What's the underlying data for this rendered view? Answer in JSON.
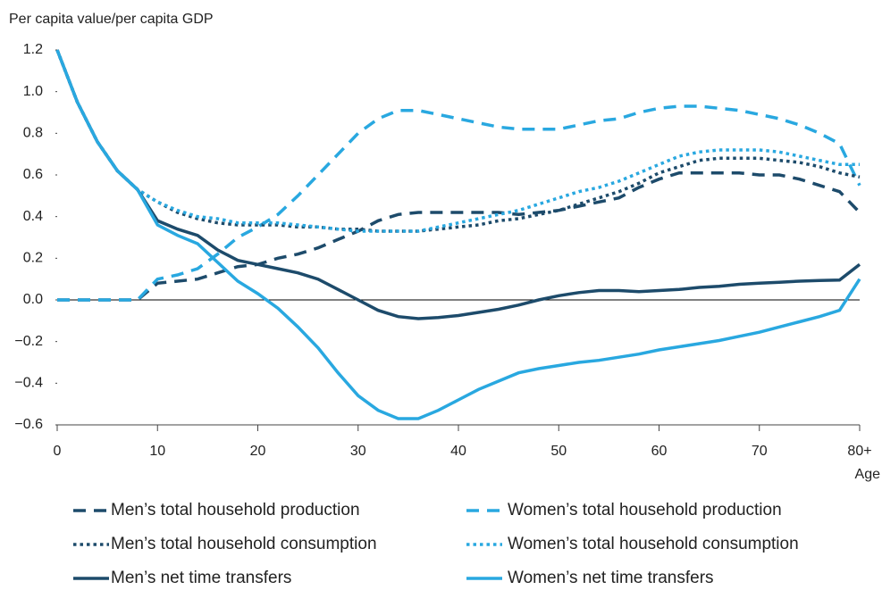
{
  "chart_data": {
    "type": "line",
    "y_label": "Per capita value/per capita GDP",
    "x_label": "Age",
    "x": [
      0,
      2,
      4,
      6,
      8,
      10,
      12,
      14,
      16,
      18,
      20,
      22,
      24,
      26,
      28,
      30,
      32,
      34,
      36,
      38,
      40,
      42,
      44,
      46,
      48,
      50,
      52,
      54,
      56,
      58,
      60,
      62,
      64,
      66,
      68,
      70,
      72,
      74,
      76,
      78,
      80
    ],
    "series": [
      {
        "name": "Men’s total household production",
        "color": "#1d4b6b",
        "dash": "dashed",
        "values": [
          0,
          0,
          0,
          0,
          0,
          0.08,
          0.09,
          0.1,
          0.13,
          0.16,
          0.17,
          0.2,
          0.22,
          0.25,
          0.29,
          0.33,
          0.38,
          0.41,
          0.42,
          0.42,
          0.42,
          0.42,
          0.42,
          0.41,
          0.42,
          0.43,
          0.45,
          0.47,
          0.49,
          0.54,
          0.58,
          0.61,
          0.61,
          0.61,
          0.61,
          0.6,
          0.6,
          0.58,
          0.55,
          0.52,
          0.42
        ]
      },
      {
        "name": "Women’s total household production",
        "color": "#29a8e0",
        "dash": "dashed",
        "values": [
          0,
          0,
          0,
          0,
          0,
          0.1,
          0.12,
          0.15,
          0.22,
          0.3,
          0.35,
          0.41,
          0.5,
          0.6,
          0.7,
          0.8,
          0.87,
          0.91,
          0.91,
          0.89,
          0.87,
          0.85,
          0.83,
          0.82,
          0.82,
          0.82,
          0.84,
          0.86,
          0.87,
          0.9,
          0.92,
          0.93,
          0.93,
          0.92,
          0.91,
          0.89,
          0.87,
          0.84,
          0.8,
          0.75,
          0.55
        ]
      },
      {
        "name": "Men’s total household consumption",
        "color": "#1d4b6b",
        "dash": "dotted",
        "values": [
          1.2,
          0.95,
          0.76,
          0.62,
          0.53,
          0.47,
          0.42,
          0.39,
          0.37,
          0.36,
          0.36,
          0.36,
          0.35,
          0.35,
          0.34,
          0.34,
          0.33,
          0.33,
          0.33,
          0.34,
          0.35,
          0.36,
          0.38,
          0.39,
          0.41,
          0.43,
          0.46,
          0.49,
          0.52,
          0.56,
          0.61,
          0.64,
          0.67,
          0.68,
          0.68,
          0.68,
          0.67,
          0.66,
          0.64,
          0.61,
          0.59
        ]
      },
      {
        "name": "Women’s total household consumption",
        "color": "#29a8e0",
        "dash": "dotted",
        "values": [
          1.2,
          0.95,
          0.76,
          0.62,
          0.53,
          0.47,
          0.43,
          0.4,
          0.39,
          0.37,
          0.37,
          0.37,
          0.36,
          0.35,
          0.34,
          0.33,
          0.33,
          0.33,
          0.33,
          0.35,
          0.37,
          0.39,
          0.41,
          0.43,
          0.46,
          0.49,
          0.52,
          0.54,
          0.57,
          0.61,
          0.65,
          0.69,
          0.71,
          0.72,
          0.72,
          0.72,
          0.71,
          0.69,
          0.67,
          0.65,
          0.65
        ]
      },
      {
        "name": "Men’s net time transfers",
        "color": "#1d4b6b",
        "dash": "solid",
        "values": [
          1.2,
          0.95,
          0.76,
          0.62,
          0.53,
          0.38,
          0.34,
          0.31,
          0.24,
          0.19,
          0.17,
          0.15,
          0.13,
          0.1,
          0.05,
          0.0,
          -0.05,
          -0.08,
          -0.09,
          -0.085,
          -0.075,
          -0.06,
          -0.045,
          -0.025,
          0.0,
          0.02,
          0.035,
          0.045,
          0.045,
          0.04,
          0.045,
          0.05,
          0.06,
          0.065,
          0.075,
          0.08,
          0.085,
          0.09,
          0.093,
          0.095,
          0.17
        ]
      },
      {
        "name": "Women’s net time transfers",
        "color": "#29a8e0",
        "dash": "solid",
        "values": [
          1.2,
          0.95,
          0.76,
          0.62,
          0.53,
          0.36,
          0.31,
          0.27,
          0.18,
          0.09,
          0.03,
          -0.04,
          -0.13,
          -0.23,
          -0.35,
          -0.46,
          -0.53,
          -0.57,
          -0.57,
          -0.53,
          -0.48,
          -0.43,
          -0.39,
          -0.35,
          -0.33,
          -0.315,
          -0.3,
          -0.29,
          -0.275,
          -0.26,
          -0.24,
          -0.225,
          -0.21,
          -0.195,
          -0.175,
          -0.155,
          -0.13,
          -0.105,
          -0.08,
          -0.05,
          0.1
        ]
      }
    ],
    "xlim": [
      0,
      80
    ],
    "xticks": [
      0,
      10,
      20,
      30,
      40,
      50,
      60,
      70,
      {
        "value": 80,
        "label": "80+"
      }
    ],
    "ylim": [
      -0.6,
      1.2
    ],
    "yticks": [
      {
        "value": 1.2,
        "label": "1.2"
      },
      {
        "value": 1,
        "label": "1.0"
      },
      {
        "value": 0.8,
        "label": "0.8"
      },
      {
        "value": 0.6,
        "label": "0.6"
      },
      {
        "value": 0.4,
        "label": "0.4"
      },
      {
        "value": 0.2,
        "label": "0.2"
      },
      {
        "value": 0,
        "label": "0.0"
      },
      {
        "value": -0.2,
        "label": "−0.2"
      },
      {
        "value": -0.4,
        "label": "−0.4"
      },
      {
        "value": -0.6,
        "label": "−0.6"
      }
    ],
    "zero_line": true
  }
}
